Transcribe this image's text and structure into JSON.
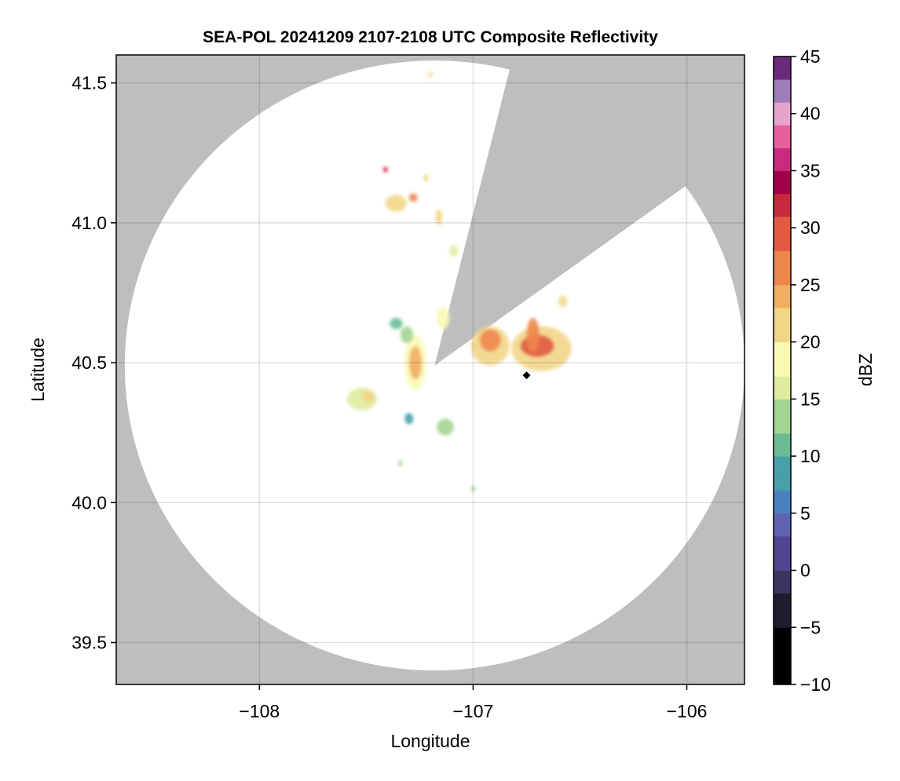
{
  "chart_data": {
    "type": "heatmap",
    "title": "SEA-POL 20241209 2107-2108 UTC Composite Reflectivity",
    "xlabel": "Longitude",
    "ylabel": "Latitude",
    "xlim": [
      -108.67,
      -105.73
    ],
    "ylim": [
      39.35,
      41.6
    ],
    "xticks": [
      -108,
      -107,
      -106
    ],
    "xtick_labels": [
      "−108",
      "−107",
      "−106"
    ],
    "yticks": [
      39.5,
      40.0,
      40.5,
      41.0,
      41.5
    ],
    "ytick_labels": [
      "39.5",
      "40.0",
      "40.5",
      "41.0",
      "41.5"
    ],
    "grid": true,
    "background_color": "#bebebe",
    "radar": {
      "lon": -107.18,
      "lat": 40.49,
      "range_deg_lon": 1.45,
      "range_deg_lat": 1.09,
      "blocked_azimuth_deg": [
        14,
        54
      ]
    },
    "colorbar": {
      "label": "dBZ",
      "range": [
        -10,
        45
      ],
      "ticks": [
        -10,
        -5,
        0,
        5,
        10,
        15,
        20,
        25,
        30,
        35,
        40,
        45
      ],
      "tick_labels": [
        "−10",
        "−5",
        "0",
        "5",
        "10",
        "15",
        "20",
        "25",
        "30",
        "35",
        "40",
        "45"
      ],
      "colors": [
        [
          -10,
          "#000000"
        ],
        [
          -5,
          "#1f1c2d"
        ],
        [
          -2,
          "#3a3560"
        ],
        [
          0,
          "#4f4590"
        ],
        [
          3,
          "#5e62b0"
        ],
        [
          5,
          "#4a80c0"
        ],
        [
          7,
          "#45a0a8"
        ],
        [
          10,
          "#6cbb94"
        ],
        [
          12,
          "#a4d494"
        ],
        [
          15,
          "#dfeb9f"
        ],
        [
          17,
          "#fafab5"
        ],
        [
          20,
          "#f2d688"
        ],
        [
          23,
          "#efae62"
        ],
        [
          25,
          "#ee874c"
        ],
        [
          28,
          "#e05a44"
        ],
        [
          31,
          "#c8283e"
        ],
        [
          33,
          "#a0004a"
        ],
        [
          35,
          "#c92a80"
        ],
        [
          37,
          "#e6609c"
        ],
        [
          39,
          "#e6a3d0"
        ],
        [
          41,
          "#a07cbc"
        ],
        [
          43,
          "#6a2a7a"
        ],
        [
          45,
          "#40004e"
        ]
      ]
    },
    "echoes": [
      {
        "lon": -107.27,
        "lat": 40.5,
        "dlon": 0.05,
        "dlat": 0.1,
        "dbz": 18
      },
      {
        "lon": -107.27,
        "lat": 40.5,
        "dlon": 0.03,
        "dlat": 0.06,
        "dbz": 23
      },
      {
        "lon": -107.31,
        "lat": 40.6,
        "dlon": 0.03,
        "dlat": 0.03,
        "dbz": 14
      },
      {
        "lon": -107.36,
        "lat": 40.64,
        "dlon": 0.03,
        "dlat": 0.02,
        "dbz": 10
      },
      {
        "lon": -107.14,
        "lat": 40.66,
        "dlon": 0.03,
        "dlat": 0.04,
        "dbz": 19
      },
      {
        "lon": -106.92,
        "lat": 40.56,
        "dlon": 0.09,
        "dlat": 0.07,
        "dbz": 20
      },
      {
        "lon": -106.92,
        "lat": 40.58,
        "dlon": 0.05,
        "dlat": 0.04,
        "dbz": 25
      },
      {
        "lon": -106.68,
        "lat": 40.55,
        "dlon": 0.14,
        "dlat": 0.08,
        "dbz": 20
      },
      {
        "lon": -106.7,
        "lat": 40.56,
        "dlon": 0.08,
        "dlat": 0.04,
        "dbz": 28
      },
      {
        "lon": -106.72,
        "lat": 40.6,
        "dlon": 0.03,
        "dlat": 0.06,
        "dbz": 27
      },
      {
        "lon": -106.58,
        "lat": 40.72,
        "dlon": 0.02,
        "dlat": 0.02,
        "dbz": 20
      },
      {
        "lon": -107.52,
        "lat": 40.37,
        "dlon": 0.07,
        "dlat": 0.04,
        "dbz": 15
      },
      {
        "lon": -107.49,
        "lat": 40.38,
        "dlon": 0.03,
        "dlat": 0.02,
        "dbz": 22
      },
      {
        "lon": -107.13,
        "lat": 40.27,
        "dlon": 0.04,
        "dlat": 0.03,
        "dbz": 13
      },
      {
        "lon": -107.3,
        "lat": 40.3,
        "dlon": 0.02,
        "dlat": 0.02,
        "dbz": 7
      },
      {
        "lon": -107.36,
        "lat": 41.07,
        "dlon": 0.05,
        "dlat": 0.03,
        "dbz": 20
      },
      {
        "lon": -107.28,
        "lat": 41.09,
        "dlon": 0.02,
        "dlat": 0.015,
        "dbz": 25
      },
      {
        "lon": -107.41,
        "lat": 41.19,
        "dlon": 0.01,
        "dlat": 0.01,
        "dbz": 32
      },
      {
        "lon": -107.22,
        "lat": 41.16,
        "dlon": 0.01,
        "dlat": 0.015,
        "dbz": 20
      },
      {
        "lon": -107.16,
        "lat": 41.02,
        "dlon": 0.015,
        "dlat": 0.03,
        "dbz": 22
      },
      {
        "lon": -107.09,
        "lat": 40.9,
        "dlon": 0.02,
        "dlat": 0.02,
        "dbz": 15
      },
      {
        "lon": -107.2,
        "lat": 41.53,
        "dlon": 0.01,
        "dlat": 0.01,
        "dbz": 22
      },
      {
        "lon": -107.0,
        "lat": 40.05,
        "dlon": 0.01,
        "dlat": 0.01,
        "dbz": 12
      },
      {
        "lon": -107.34,
        "lat": 40.14,
        "dlon": 0.008,
        "dlat": 0.01,
        "dbz": 12
      }
    ],
    "marker": {
      "lon": -106.75,
      "lat": 40.455,
      "color": "#000000",
      "shape": "diamond"
    }
  }
}
